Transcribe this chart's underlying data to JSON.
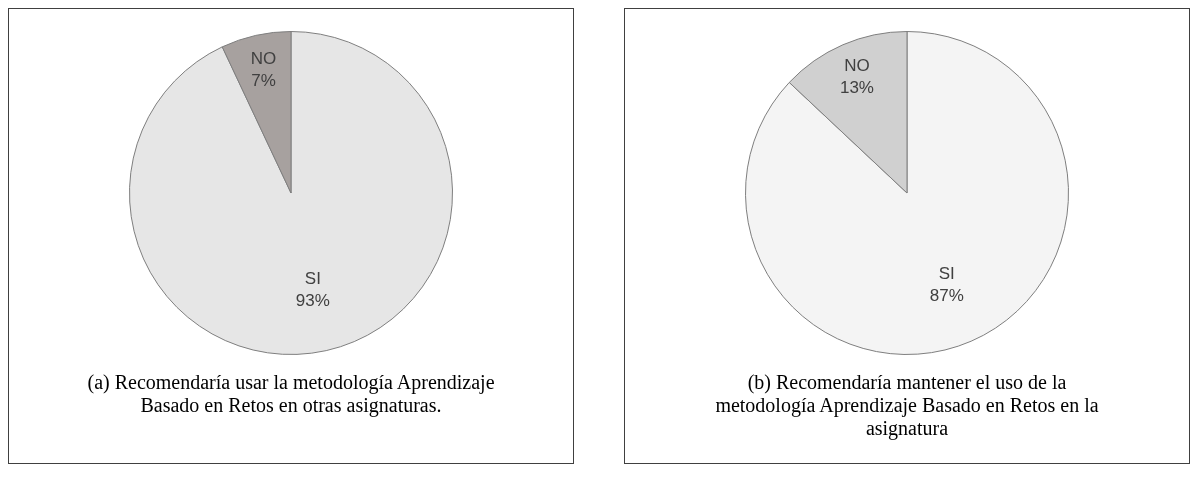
{
  "chart_data": [
    {
      "type": "pie",
      "title": "(a) Recomendaría usar la metodología Aprendizaje Basado en Retos en otras asignaturas.",
      "categories": [
        "SI",
        "NO"
      ],
      "values": [
        93,
        7
      ],
      "colors": [
        "#e6e6e6",
        "#a7a19f"
      ],
      "value_labels": [
        "93%",
        "7%"
      ],
      "legend": false
    },
    {
      "type": "pie",
      "title": "(b) Recomendaría mantener el uso de la metodología Aprendizaje Basado en Retos en la asignatura",
      "categories": [
        "SI",
        "NO"
      ],
      "values": [
        87,
        13
      ],
      "colors": [
        "#f4f4f4",
        "#d0d0d0"
      ],
      "value_labels": [
        "87%",
        "13%"
      ],
      "legend": false
    }
  ]
}
